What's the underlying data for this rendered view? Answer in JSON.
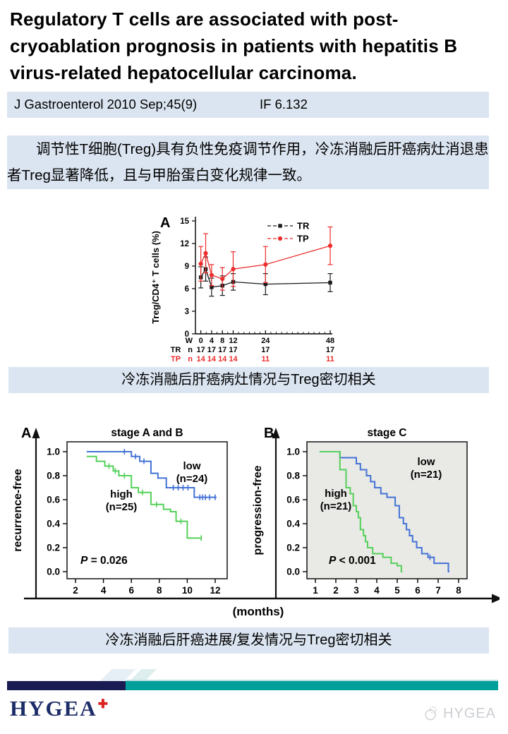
{
  "header": {
    "title_lines": [
      "Regulatory T cells are associated with post-",
      "cryoablation prognosis in patients with hepatitis B",
      "virus-related hepatocellular carcinoma."
    ],
    "citation": "J Gastroenterol 2010 Sep;45(9)",
    "impact_factor": "IF 6.132"
  },
  "summary_cn": "调节性T细胞(Treg)具有负性免疫调节作用，冷冻消融后肝癌病灶消退患者Treg显著降低，且与甲胎蛋白变化规律一致。",
  "captions": {
    "figure1": "冷冻消融后肝癌病灶情况与Treg密切相关",
    "figure2": "冷冻消融后肝癌进展/复发情况与Treg密切相关"
  },
  "footer": {
    "brand": "HYGEA",
    "watermark": "HYGEA"
  },
  "colors": {
    "bar_bg": "#dbe5f1",
    "footer_navy": "#1a1b52",
    "footer_teal": "#00a09a",
    "brand_navy": "#1d2d69",
    "brand_red": "#dd1f1f"
  },
  "chart_data": [
    {
      "id": "treg-kinetics",
      "type": "line",
      "panel_label": "A",
      "ylabel": "Treg/CD4⁺ T cells (%)",
      "week_axis_label": "W",
      "n_axis_label": "n",
      "ylim": [
        0,
        15
      ],
      "yticks": [
        0,
        3,
        6,
        9,
        12,
        15
      ],
      "xticks_labeled": [
        0,
        4,
        8,
        12,
        24,
        48
      ],
      "series": [
        {
          "name": "TR",
          "color": "#1a1a1a",
          "marker": "square",
          "x": [
            0,
            1.8,
            4,
            8,
            12,
            24,
            48
          ],
          "values": [
            7.5,
            8.6,
            6.2,
            6.4,
            6.9,
            6.6,
            6.8
          ],
          "err": [
            1.4,
            1.6,
            1.2,
            1.3,
            1.1,
            1.4,
            1.2
          ],
          "n_row": [
            17,
            17,
            17,
            17,
            17,
            17
          ]
        },
        {
          "name": "TP",
          "color": "#ee2b2b",
          "marker": "circle",
          "x": [
            0,
            1.8,
            4,
            8,
            12,
            24,
            48
          ],
          "values": [
            9.3,
            10.7,
            7.8,
            7.3,
            8.6,
            9.2,
            11.7
          ],
          "err": [
            2.3,
            2.6,
            1.4,
            1.5,
            2.3,
            2.4,
            2.5
          ],
          "n_row": [
            14,
            14,
            14,
            14,
            11,
            11
          ]
        }
      ]
    },
    {
      "id": "km-stage-ab",
      "type": "step",
      "panel_label": "A",
      "title": "stage A and B",
      "ylabel": "recurrence-free",
      "xlabel": "(months)",
      "pvalue": "P = 0.026",
      "xticks": [
        2,
        4,
        6,
        8,
        10,
        12
      ],
      "yticks": [
        "0.0",
        "0.2",
        "0.4",
        "0.6",
        "0.8",
        "1.0"
      ],
      "series": [
        {
          "name": "low",
          "n_text": "(n=24)",
          "color": "#4472d6",
          "points": [
            [
              2.8,
              1.0
            ],
            [
              6.0,
              0.96
            ],
            [
              6.6,
              0.92
            ],
            [
              7.4,
              0.82
            ],
            [
              7.9,
              0.78
            ],
            [
              8.5,
              0.7
            ],
            [
              10.5,
              0.62
            ]
          ],
          "end_x": 12.1,
          "censors": [
            [
              5.5,
              1.0
            ],
            [
              6.3,
              0.96
            ],
            [
              6.9,
              0.92
            ],
            [
              9.0,
              0.7
            ],
            [
              9.35,
              0.7
            ],
            [
              9.7,
              0.7
            ],
            [
              10.05,
              0.7
            ],
            [
              10.9,
              0.62
            ],
            [
              11.1,
              0.62
            ],
            [
              11.3,
              0.62
            ],
            [
              11.6,
              0.62
            ],
            [
              12.0,
              0.62
            ]
          ]
        },
        {
          "name": "high",
          "n_text": "(n=25)",
          "color": "#55d05a",
          "points": [
            [
              2.8,
              0.96
            ],
            [
              3.5,
              0.92
            ],
            [
              4.1,
              0.88
            ],
            [
              4.7,
              0.84
            ],
            [
              5.1,
              0.8
            ],
            [
              6.0,
              0.7
            ],
            [
              6.5,
              0.66
            ],
            [
              7.4,
              0.56
            ],
            [
              8.3,
              0.52
            ],
            [
              8.8,
              0.5
            ],
            [
              9.2,
              0.42
            ],
            [
              10.0,
              0.28
            ]
          ],
          "end_x": 11.05,
          "censors": [
            [
              4.4,
              0.88
            ],
            [
              4.85,
              0.84
            ],
            [
              5.5,
              0.8
            ],
            [
              6.8,
              0.66
            ],
            [
              7.8,
              0.56
            ],
            [
              9.55,
              0.42
            ],
            [
              11.0,
              0.28
            ]
          ]
        }
      ]
    },
    {
      "id": "km-stage-c",
      "type": "step",
      "panel_label": "B",
      "title": "stage C",
      "ylabel": "progression-free",
      "xlabel": "(months)",
      "pvalue": "P < 0.001",
      "plot_bg": "#e9e9e6",
      "xticks": [
        1,
        2,
        3,
        4,
        5,
        6,
        7,
        8
      ],
      "yticks": [
        "0.0",
        "0.2",
        "0.4",
        "0.6",
        "0.8",
        "1.0"
      ],
      "series": [
        {
          "name": "low",
          "n_text": "(n=21)",
          "color": "#4472d6",
          "points": [
            [
              1.9,
              1.0
            ],
            [
              2.2,
              0.95
            ],
            [
              3.0,
              0.9
            ],
            [
              3.2,
              0.85
            ],
            [
              3.5,
              0.8
            ],
            [
              3.7,
              0.75
            ],
            [
              3.9,
              0.7
            ],
            [
              4.2,
              0.65
            ],
            [
              4.5,
              0.62
            ],
            [
              4.9,
              0.55
            ],
            [
              5.1,
              0.45
            ],
            [
              5.3,
              0.4
            ],
            [
              5.45,
              0.35
            ],
            [
              5.6,
              0.3
            ],
            [
              5.75,
              0.25
            ],
            [
              5.95,
              0.2
            ],
            [
              6.2,
              0.15
            ],
            [
              6.5,
              0.12
            ],
            [
              6.8,
              0.07
            ],
            [
              7.5,
              0.0
            ]
          ],
          "end_x": 7.55,
          "censors": [
            [
              6.6,
              0.12
            ]
          ]
        },
        {
          "name": "high",
          "n_text": "(n=21)",
          "color": "#55d05a",
          "points": [
            [
              1.2,
              1.0
            ],
            [
              2.2,
              0.85
            ],
            [
              2.5,
              0.7
            ],
            [
              2.7,
              0.65
            ],
            [
              2.85,
              0.55
            ],
            [
              3.0,
              0.5
            ],
            [
              3.1,
              0.45
            ],
            [
              3.2,
              0.35
            ],
            [
              3.35,
              0.3
            ],
            [
              3.45,
              0.25
            ],
            [
              3.55,
              0.2
            ],
            [
              3.8,
              0.15
            ],
            [
              4.3,
              0.12
            ],
            [
              4.7,
              0.07
            ],
            [
              5.0,
              0.05
            ],
            [
              5.2,
              0.0
            ]
          ],
          "end_x": 5.25,
          "censors": []
        }
      ]
    }
  ]
}
